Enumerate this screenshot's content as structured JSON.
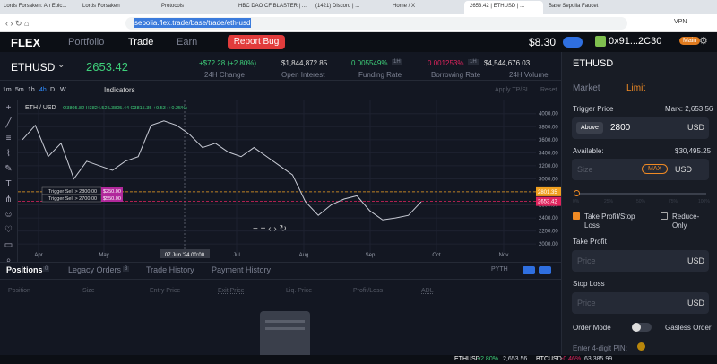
{
  "browser": {
    "tabs": [
      "Lords Forsaken: An Epic...",
      "Lords Forsaken",
      "Protocols",
      "HBC DAO CF BLASTER | ...",
      "(1421) Discord | ...",
      "Home / X",
      "2653.42 | ETHUSD | ...",
      "Base Sepolia Faucet"
    ],
    "url": "sepolia.flex.trade/base/trade/eth-usd",
    "vpn": "VPN"
  },
  "nav": {
    "logo": "FLEX",
    "links": [
      "Portfolio",
      "Trade",
      "Earn"
    ],
    "report": "Report Bug",
    "balance": "$8.30",
    "address": "0x91...2C30",
    "badge": "Main"
  },
  "ticker": {
    "symbol": "ETHUSD",
    "price": "2653.42",
    "stats": [
      {
        "value": "+$72.28 (+2.80%)",
        "label": "24H Change"
      },
      {
        "value": "$1,844,872.85",
        "label": "Open Interest"
      },
      {
        "value": "0.005549%",
        "tag": "1H",
        "label": "Funding Rate"
      },
      {
        "value": "0.001253%",
        "tag": "1H",
        "label": "Borrowing Rate"
      },
      {
        "value": "$4,544,676.03",
        "label": "24H Volume"
      }
    ]
  },
  "toolbar": {
    "timeframes": [
      "1m",
      "5m",
      "1h",
      "4h",
      "D",
      "W"
    ],
    "indicators": "Indicators",
    "apply": "Apply TP/SL",
    "reset": "Reset"
  },
  "chart_data": {
    "type": "line",
    "title": "ETH / USD",
    "ohlc": "O3805.82 H3824.52 L3805.44 C3815.35 +9.53 (+0.25%)",
    "x_labels": [
      "Apr",
      "May",
      "Jul",
      "Aug",
      "Sep",
      "Oct",
      "Nov"
    ],
    "crosshair_label": "07 Jun '24 00:00",
    "series": [
      {
        "name": "ETH / USD",
        "color": "#c9ccd6",
        "values": [
          3600,
          3820,
          3340,
          3545,
          3000,
          3270,
          3200,
          3130,
          3270,
          3340,
          3820,
          3890,
          3820,
          3680,
          3480,
          3545,
          3410,
          3340,
          3480,
          3340,
          3200,
          3060,
          2650,
          2440,
          2600,
          2690,
          2740,
          2510,
          2370,
          2400,
          2440,
          2650
        ]
      }
    ],
    "ylim": [
      1920,
      4120
    ],
    "yticks": [
      {
        "value": 4000,
        "label": "4000.00"
      },
      {
        "value": 3800,
        "label": "3800.00"
      },
      {
        "value": 3600,
        "label": "3600.00"
      },
      {
        "value": 3400,
        "label": "3400.00"
      },
      {
        "value": 3200,
        "label": "3200.00"
      },
      {
        "value": 3000,
        "label": "3000.00"
      },
      {
        "value": 2800,
        "label": "2800.00"
      },
      {
        "value": 2600,
        "label": "2600.00"
      },
      {
        "value": 2400,
        "label": "2400.00"
      },
      {
        "value": 2200,
        "label": "2200.00"
      },
      {
        "value": 2000,
        "label": "2000.00"
      }
    ],
    "price_lines": [
      {
        "value": 2801.35,
        "label": "2801.35",
        "color": "#f0a020"
      },
      {
        "value": 2653.42,
        "label": "2653.42",
        "color": "#e0245e"
      }
    ],
    "orders": [
      {
        "text": "Trigger Sell > 2800.00",
        "amount": "$250.00"
      },
      {
        "text": "Trigger Sell > 2700.00",
        "amount": "$550.00"
      }
    ]
  },
  "bottom": {
    "tabs": [
      {
        "name": "Positions",
        "count": "0"
      },
      {
        "name": "Legacy Orders",
        "count": "3"
      },
      {
        "name": "Trade History"
      },
      {
        "name": "Payment History"
      }
    ],
    "columns": [
      "Position",
      "Size",
      "Entry Price",
      "Exit Price",
      "Liq. Price",
      "Profit/Loss",
      "ADL"
    ],
    "oracle": "PYTH"
  },
  "panel": {
    "symbol": "ETHUSD",
    "modes": [
      "Market",
      "Limit"
    ],
    "trigger_label": "Trigger Price",
    "mark": "Mark: 2,653.56",
    "above": "Above",
    "trigger_value": "2800",
    "unit": "USD",
    "available_label": "Available:",
    "available": "$30,495.25",
    "size": "Size",
    "max": "MAX",
    "size_unit": "USD",
    "slider": [
      "0%",
      "25%",
      "50%",
      "75%",
      "100%"
    ],
    "tpsl": "Take Profit/Stop Loss",
    "reduce": "Reduce-Only",
    "tp": "Take Profit",
    "tp_price": "Price",
    "tp_unit": "USD",
    "sl": "Stop Loss",
    "sl_price": "Price",
    "sl_unit": "USD",
    "order_mode": "Order Mode",
    "gasless": "Gasless Order",
    "pin": "Enter 4-digit PIN:"
  },
  "status": {
    "items": [
      {
        "symbol": "ETHUSD",
        "change": "+2.80%",
        "price": "2,653.56"
      },
      {
        "symbol": "BTCUSD",
        "change": "-0.46%",
        "price": "63,385.99"
      }
    ]
  }
}
